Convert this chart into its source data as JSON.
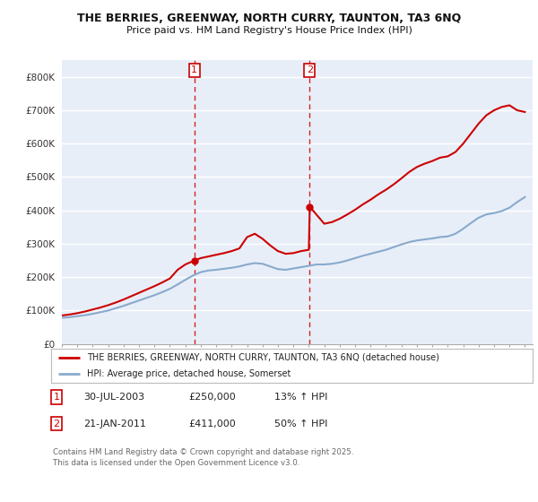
{
  "title_line1": "THE BERRIES, GREENWAY, NORTH CURRY, TAUNTON, TA3 6NQ",
  "title_line2": "Price paid vs. HM Land Registry's House Price Index (HPI)",
  "ylim": [
    0,
    850000
  ],
  "ytick_labels": [
    "£0",
    "£100K",
    "£200K",
    "£300K",
    "£400K",
    "£500K",
    "£600K",
    "£700K",
    "£800K"
  ],
  "ytick_values": [
    0,
    100000,
    200000,
    300000,
    400000,
    500000,
    600000,
    700000,
    800000
  ],
  "plot_bg_color": "#e8eef8",
  "red_line_color": "#cc0000",
  "blue_line_color": "#88aacc",
  "vline_color": "#cc0000",
  "sale1_x": 2003.58,
  "sale1_y": 250000,
  "sale1_label": "1",
  "sale2_x": 2011.06,
  "sale2_y": 411000,
  "sale2_label": "2",
  "legend_line1": "THE BERRIES, GREENWAY, NORTH CURRY, TAUNTON, TA3 6NQ (detached house)",
  "legend_line2": "HPI: Average price, detached house, Somerset",
  "footnote": "Contains HM Land Registry data © Crown copyright and database right 2025.\nThis data is licensed under the Open Government Licence v3.0.",
  "xmin": 1995,
  "xmax": 2025.5
}
